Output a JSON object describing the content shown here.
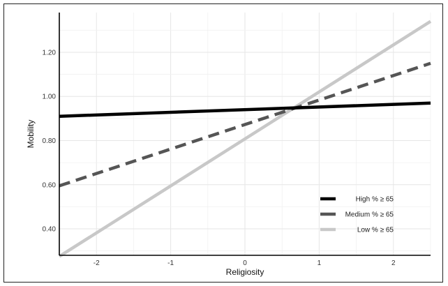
{
  "chart_data": {
    "type": "line",
    "xlabel": "Religiosity",
    "ylabel": "Mobility",
    "xlim": [
      -2.5,
      2.5
    ],
    "ylim": [
      0.28,
      1.38
    ],
    "x_ticks": [
      -2,
      -1,
      0,
      1,
      2
    ],
    "x_tick_labels": [
      "-2",
      "-1",
      "0",
      "1",
      "2"
    ],
    "y_ticks": [
      0.4,
      0.6,
      0.8,
      1.0,
      1.2
    ],
    "y_tick_labels": [
      "0.40",
      "0.60",
      "0.80",
      "1.00",
      "1.20"
    ],
    "grid": true,
    "legend_position": "bottom-right",
    "series": [
      {
        "name": "High % ≥ 65",
        "x": [
          -2.5,
          2.5
        ],
        "y": [
          0.91,
          0.97
        ],
        "color": "#000000",
        "dash": "solid"
      },
      {
        "name": "Medium % ≥ 65",
        "x": [
          -2.5,
          2.5
        ],
        "y": [
          0.595,
          1.15
        ],
        "color": "#555555",
        "dash": "dashed"
      },
      {
        "name": "Low % ≥ 65",
        "x": [
          -2.5,
          2.5
        ],
        "y": [
          0.275,
          1.34
        ],
        "color": "#c8c8c8",
        "dash": "solid"
      }
    ]
  }
}
